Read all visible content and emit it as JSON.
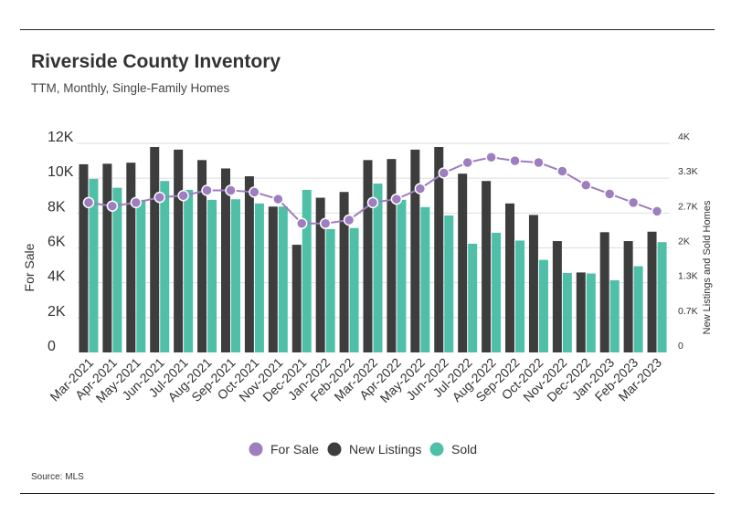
{
  "header": {
    "title": "Riverside County Inventory",
    "subtitle": "TTM, Monthly, Single-Family Homes"
  },
  "footer": {
    "source": "Source: MLS"
  },
  "colors": {
    "for_sale": "#9e7ebf",
    "new_listings": "#3d3d3d",
    "sold": "#4fbfa8",
    "grid": "#dddddd",
    "text": "#444444"
  },
  "chart_data": {
    "type": "bar",
    "title": "Riverside County Inventory",
    "subtitle": "TTM, Monthly, Single-Family Homes",
    "ylabel": "For Sale",
    "y2label": "New Listings and Sold Homes",
    "ylim": [
      0,
      12000
    ],
    "y2lim": [
      0,
      4000
    ],
    "yticks": [
      "0",
      "2K",
      "4K",
      "6K",
      "8K",
      "10K",
      "12K"
    ],
    "y2ticks": [
      "0",
      "0.7K",
      "1.3K",
      "2K",
      "2.7K",
      "3.3K",
      "4K"
    ],
    "categories": [
      "Mar-2021",
      "Apr-2021",
      "May-2021",
      "Jun-2021",
      "Jul-2021",
      "Aug-2021",
      "Sep-2021",
      "Oct-2021",
      "Nov-2021",
      "Dec-2021",
      "Jan-2022",
      "Feb-2022",
      "Mar-2022",
      "Apr-2022",
      "May-2022",
      "Jun-2022",
      "Jul-2022",
      "Aug-2022",
      "Sep-2022",
      "Oct-2022",
      "Nov-2022",
      "Dec-2022",
      "Jan-2023",
      "Feb-2023",
      "Mar-2023"
    ],
    "series": [
      {
        "name": "For Sale",
        "type": "line",
        "axis": "left",
        "values": [
          8600,
          8400,
          8600,
          8900,
          9000,
          9300,
          9300,
          9200,
          8800,
          7400,
          7400,
          7600,
          8600,
          8800,
          9400,
          10300,
          10900,
          11200,
          11000,
          10900,
          10400,
          9600,
          9100,
          8600,
          8100
        ]
      },
      {
        "name": "New Listings",
        "type": "bar",
        "axis": "right",
        "values": [
          3600,
          3610,
          3630,
          3930,
          3880,
          3680,
          3520,
          3370,
          2790,
          2060,
          2960,
          3070,
          3680,
          3700,
          3880,
          3930,
          3420,
          3280,
          2850,
          2630,
          2130,
          1530,
          2300,
          2130,
          2310
        ]
      },
      {
        "name": "Sold",
        "type": "bar",
        "axis": "right",
        "values": [
          3320,
          3150,
          2920,
          3280,
          3110,
          2920,
          2930,
          2850,
          2790,
          3110,
          2360,
          2380,
          3230,
          2920,
          2780,
          2620,
          2080,
          2290,
          2140,
          1770,
          1520,
          1510,
          1380,
          1650,
          2110
        ]
      }
    ],
    "legend": [
      "For Sale",
      "New Listings",
      "Sold"
    ],
    "legend_position": "bottom"
  }
}
